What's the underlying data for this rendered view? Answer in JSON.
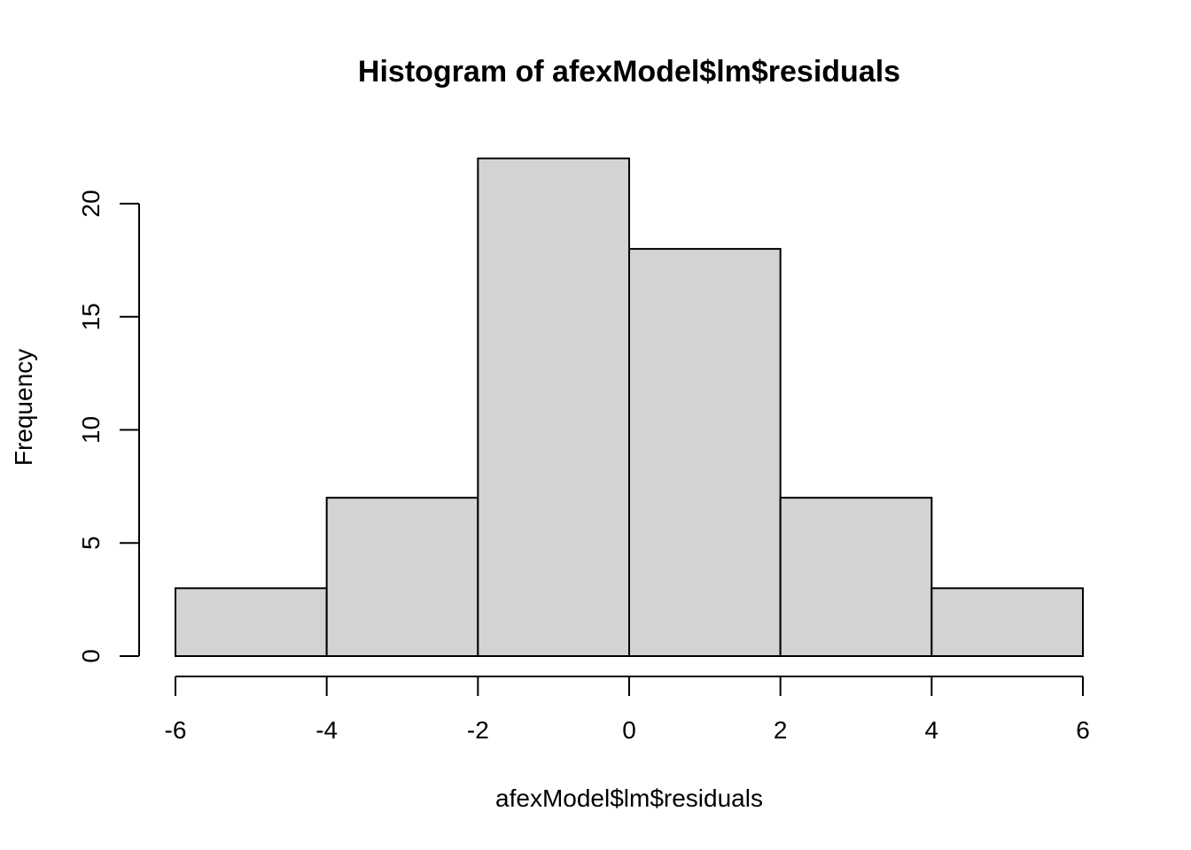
{
  "chart_data": {
    "type": "bar",
    "title": "Histogram of afexModel$lm$residuals",
    "xlabel": "afexModel$lm$residuals",
    "ylabel": "Frequency",
    "bins": [
      {
        "x0": -6,
        "x1": -4,
        "count": 3
      },
      {
        "x0": -4,
        "x1": -2,
        "count": 7
      },
      {
        "x0": -2,
        "x1": 0,
        "count": 22
      },
      {
        "x0": 0,
        "x1": 2,
        "count": 18
      },
      {
        "x0": 2,
        "x1": 4,
        "count": 7
      },
      {
        "x0": 4,
        "x1": 6,
        "count": 3
      }
    ],
    "xlim": [
      -6,
      6
    ],
    "ylim": [
      0,
      22
    ],
    "xticks": [
      -6,
      -4,
      -2,
      0,
      2,
      4,
      6
    ],
    "yticks": [
      0,
      5,
      10,
      15,
      20
    ],
    "grid": false,
    "colors": {
      "bar_fill": "#d3d3d3",
      "bar_stroke": "#000000",
      "axis": "#000000"
    }
  }
}
